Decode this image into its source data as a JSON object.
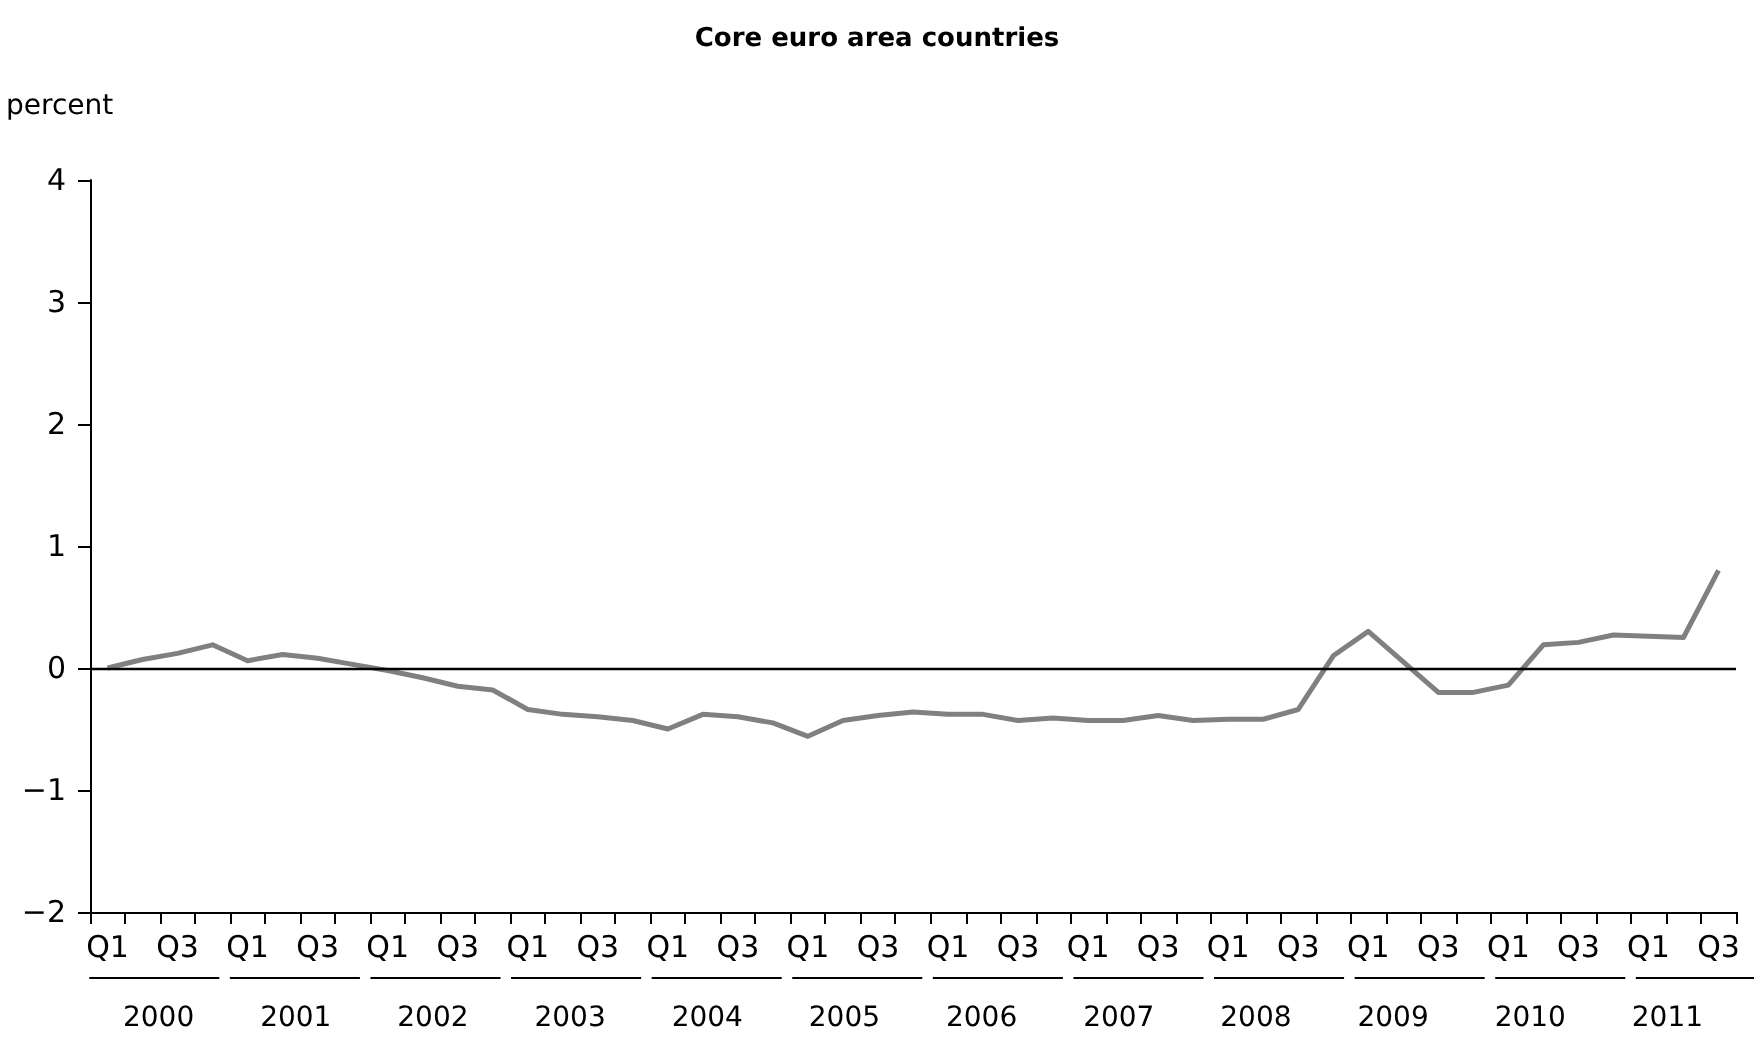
{
  "chart_data": {
    "type": "line",
    "title": "Core euro area countries",
    "ylabel": "percent",
    "categories": [
      "Q1",
      null,
      "Q3",
      null,
      "Q1",
      null,
      "Q3",
      null,
      "Q1",
      null,
      "Q3",
      null,
      "Q1",
      null,
      "Q3",
      null,
      "Q1",
      null,
      "Q3",
      null,
      "Q1",
      null,
      "Q3",
      null,
      "Q1",
      null,
      "Q3",
      null,
      "Q1",
      null,
      "Q3",
      null,
      "Q1",
      null,
      "Q3",
      null,
      "Q1",
      null,
      "Q3",
      null,
      "Q1",
      null,
      "Q3",
      null,
      "Q1",
      null,
      "Q3"
    ],
    "annotations": [
      "2000",
      "2001",
      "2002",
      "2003",
      "2004",
      "2005",
      "2006",
      "2007",
      "2008",
      "2009",
      "2010",
      "2011"
    ],
    "series": [
      {
        "color": "#808080",
        "values": [
          0.0,
          0.07,
          0.12,
          0.19,
          0.06,
          0.11,
          0.08,
          0.03,
          -0.02,
          -0.08,
          -0.15,
          -0.18,
          -0.34,
          -0.38,
          -0.4,
          -0.43,
          -0.5,
          -0.38,
          -0.4,
          -0.45,
          -0.56,
          -0.43,
          -0.39,
          -0.36,
          -0.38,
          -0.38,
          -0.43,
          -0.41,
          -0.43,
          -0.43,
          -0.39,
          -0.43,
          -0.42,
          -0.42,
          -0.34,
          0.1,
          0.3,
          0.05,
          -0.2,
          -0.2,
          -0.14,
          0.19,
          0.21,
          0.27,
          0.26,
          0.25,
          0.8
        ]
      }
    ],
    "ylim": [
      -2,
      4
    ],
    "yticks": [
      -2,
      -1,
      0,
      1,
      2,
      3,
      4
    ],
    "grid": false,
    "marker": "none",
    "line_style": "solid",
    "ref_lines": [
      {
        "axis": "y",
        "value": 0,
        "color": "#000000"
      }
    ]
  }
}
